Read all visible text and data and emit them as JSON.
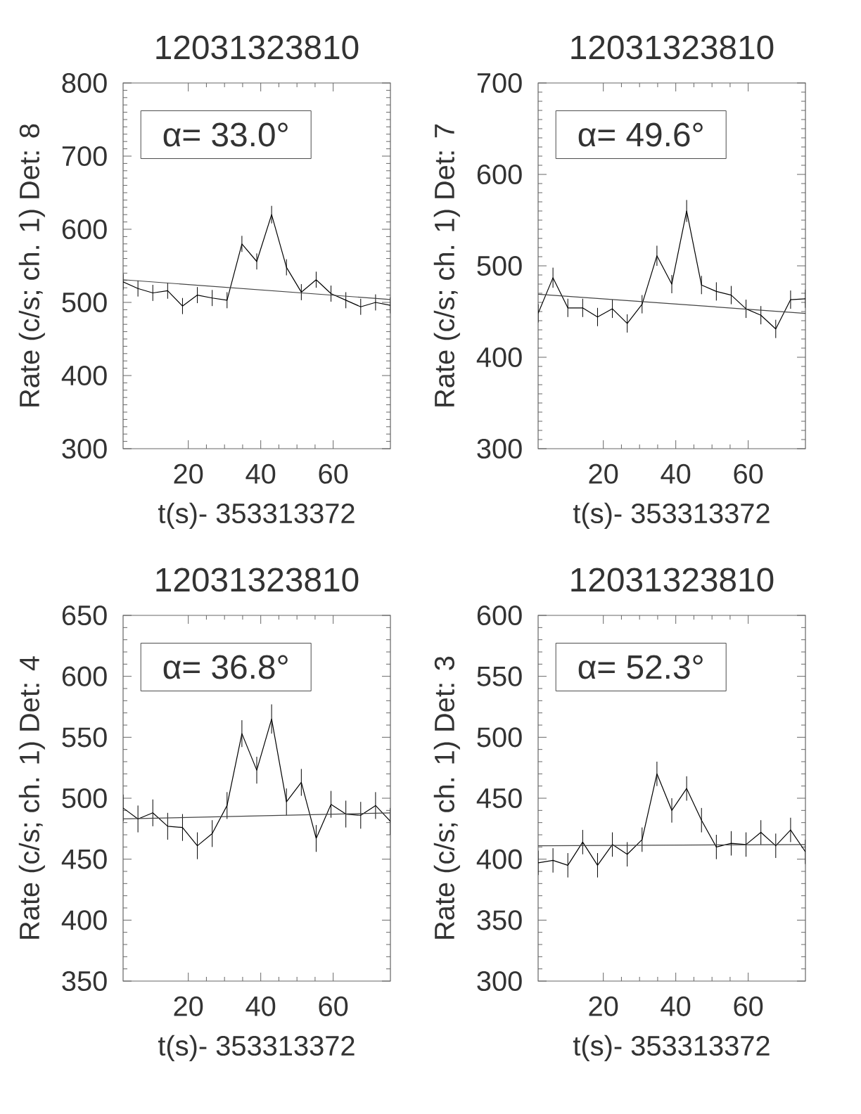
{
  "chart_data": [
    {
      "type": "line",
      "title": "12031323810",
      "xlabel": "t(s)- 353313372",
      "ylabel": "Rate (c/s; ch. 1) Det: 8",
      "xlim": [
        2.0,
        75.8
      ],
      "ylim": [
        300,
        800
      ],
      "xticks": [
        20,
        40,
        60
      ],
      "yticks": [
        300,
        400,
        500,
        600,
        700,
        800
      ],
      "annotations": [
        "α= 33.0°"
      ],
      "series": [
        {
          "color": "#000000",
          "x": [
            2.0,
            6.1,
            10.2,
            14.3,
            18.4,
            22.5,
            26.6,
            30.7,
            34.8,
            38.9,
            43.0,
            47.1,
            51.2,
            55.3,
            59.4,
            63.5,
            67.6,
            71.7,
            75.8
          ],
          "values": [
            528,
            519,
            513,
            516,
            495,
            510,
            506,
            503,
            580,
            556,
            620,
            548,
            514,
            531,
            512,
            503,
            494,
            500,
            496
          ],
          "errors": [
            11,
            11,
            11,
            11,
            11,
            11,
            11,
            11,
            11,
            11,
            12,
            11,
            11,
            11,
            11,
            11,
            11,
            11,
            11
          ]
        },
        {
          "type": "line",
          "color": "#444444",
          "x": [
            2.0,
            75.8
          ],
          "values": [
            531,
            504
          ]
        }
      ]
    },
    {
      "type": "line",
      "title": "12031323810",
      "xlabel": "t(s)- 353313372",
      "ylabel": "Rate (c/s; ch. 1) Det: 7",
      "xlim": [
        2.0,
        75.8
      ],
      "ylim": [
        300,
        700
      ],
      "xticks": [
        20,
        40,
        60
      ],
      "yticks": [
        300,
        400,
        500,
        600,
        700
      ],
      "annotations": [
        "α= 49.6°"
      ],
      "series": [
        {
          "color": "#000000",
          "x": [
            2.0,
            6.1,
            10.2,
            14.3,
            18.4,
            22.5,
            26.6,
            30.7,
            34.8,
            38.9,
            43.0,
            47.1,
            51.2,
            55.3,
            59.4,
            63.5,
            67.6,
            71.7,
            75.8
          ],
          "values": [
            448,
            487,
            454,
            454,
            444,
            453,
            437,
            458,
            511,
            480,
            560,
            479,
            472,
            468,
            453,
            446,
            431,
            463,
            464
          ],
          "errors": [
            10,
            11,
            10,
            10,
            10,
            10,
            10,
            10,
            11,
            10,
            12,
            10,
            10,
            10,
            10,
            10,
            10,
            10,
            10
          ]
        },
        {
          "type": "line",
          "color": "#444444",
          "x": [
            2.0,
            75.8
          ],
          "values": [
            469,
            448
          ]
        }
      ]
    },
    {
      "type": "line",
      "title": "12031323810",
      "xlabel": "t(s)- 353313372",
      "ylabel": "Rate (c/s; ch. 1) Det: 4",
      "xlim": [
        2.0,
        75.8
      ],
      "ylim": [
        350,
        650
      ],
      "xticks": [
        20,
        40,
        60
      ],
      "yticks": [
        350,
        400,
        450,
        500,
        550,
        600,
        650
      ],
      "annotations": [
        "α= 36.8°"
      ],
      "series": [
        {
          "color": "#000000",
          "x": [
            2.0,
            6.1,
            10.2,
            14.3,
            18.4,
            22.5,
            26.6,
            30.7,
            34.8,
            38.9,
            43.0,
            47.1,
            51.2,
            55.3,
            59.4,
            63.5,
            67.6,
            71.7,
            75.8
          ],
          "values": [
            492,
            483,
            488,
            477,
            476,
            461,
            471,
            494,
            553,
            523,
            565,
            497,
            513,
            467,
            495,
            487,
            486,
            494,
            481
          ],
          "errors": [
            11,
            11,
            11,
            11,
            11,
            11,
            11,
            11,
            11,
            11,
            12,
            11,
            11,
            11,
            11,
            11,
            11,
            11,
            11
          ]
        },
        {
          "type": "line",
          "color": "#444444",
          "x": [
            2.0,
            75.8
          ],
          "values": [
            483,
            488
          ]
        }
      ]
    },
    {
      "type": "line",
      "title": "12031323810",
      "xlabel": "t(s)- 353313372",
      "ylabel": "Rate (c/s; ch. 1) Det: 3",
      "xlim": [
        2.0,
        75.8
      ],
      "ylim": [
        300,
        600
      ],
      "xticks": [
        20,
        40,
        60
      ],
      "yticks": [
        300,
        350,
        400,
        450,
        500,
        550,
        600
      ],
      "annotations": [
        "α= 52.3°"
      ],
      "series": [
        {
          "color": "#000000",
          "x": [
            2.0,
            6.1,
            10.2,
            14.3,
            18.4,
            22.5,
            26.6,
            30.7,
            34.8,
            38.9,
            43.0,
            47.1,
            51.2,
            55.3,
            59.4,
            63.5,
            67.6,
            71.7,
            75.8
          ],
          "values": [
            397,
            399,
            395,
            414,
            395,
            412,
            404,
            416,
            470,
            440,
            458,
            432,
            410,
            413,
            412,
            422,
            411,
            424,
            406
          ],
          "errors": [
            10,
            10,
            10,
            10,
            10,
            10,
            10,
            10,
            10,
            10,
            10,
            10,
            10,
            10,
            10,
            10,
            10,
            10,
            10
          ]
        },
        {
          "type": "line",
          "color": "#444444",
          "x": [
            2.0,
            75.8
          ],
          "values": [
            411,
            412
          ]
        }
      ]
    }
  ]
}
